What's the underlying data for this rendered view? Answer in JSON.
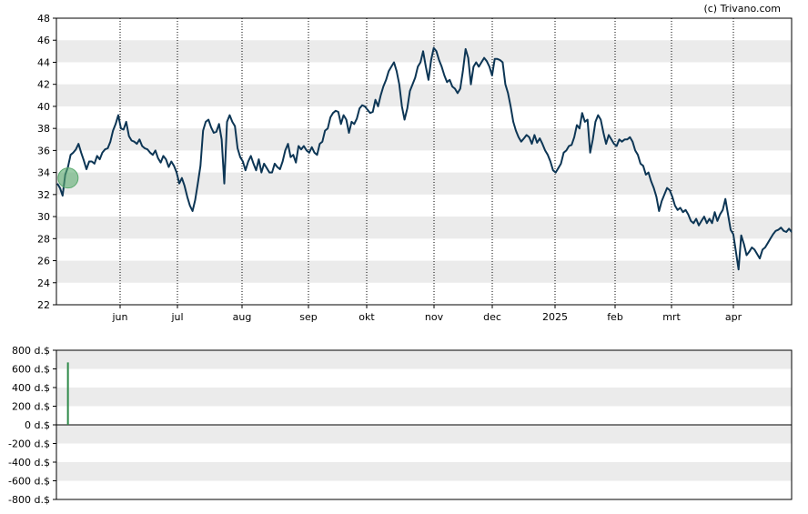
{
  "copyright": "(c) Trivano.com",
  "colors": {
    "line": "#0d3655",
    "band": "#ebebeb",
    "marker_fill": "#5aaa6e",
    "bar": "#2f8a4a",
    "axis": "#000000",
    "vgrid": "#000000"
  },
  "chart_data": [
    {
      "type": "line",
      "title": "",
      "xlabel": "",
      "ylabel": "",
      "ylim": [
        22,
        48
      ],
      "yticks": [
        "22",
        "24",
        "26",
        "28",
        "30",
        "32",
        "34",
        "36",
        "38",
        "40",
        "42",
        "44",
        "46",
        "48"
      ],
      "xticks": [
        "jun",
        "jul",
        "aug",
        "sep",
        "okt",
        "nov",
        "dec",
        "2025",
        "feb",
        "mrt",
        "apr"
      ],
      "vertical_gridlines": "dotted at each month",
      "horizontal_bands": "alternating grey/white",
      "start_marker": {
        "x_index": 2,
        "y": 33.5
      },
      "series": [
        {
          "values": [
            33.0,
            32.6,
            31.9,
            33.8,
            34.5,
            35.6,
            35.8,
            36.1,
            36.6,
            35.8,
            35.1,
            34.3,
            35.0,
            35.0,
            34.8,
            35.5,
            35.2,
            35.8,
            36.1,
            36.2,
            36.8,
            37.8,
            38.4,
            39.2,
            38.0,
            37.9,
            38.6,
            37.3,
            36.9,
            36.8,
            36.6,
            37.0,
            36.4,
            36.2,
            36.1,
            35.8,
            35.6,
            36.0,
            35.3,
            34.9,
            35.5,
            35.2,
            34.5,
            35.0,
            34.6,
            34.0,
            33.0,
            33.5,
            32.8,
            31.8,
            31.0,
            30.5,
            31.5,
            33.0,
            34.6,
            37.8,
            38.6,
            38.8,
            38.1,
            37.6,
            37.7,
            38.4,
            37.0,
            33.0,
            38.6,
            39.2,
            38.6,
            38.2,
            36.2,
            35.4,
            35.0,
            34.2,
            35.0,
            35.5,
            34.8,
            34.2,
            35.2,
            34.0,
            34.8,
            34.4,
            34.0,
            34.0,
            34.8,
            34.5,
            34.3,
            35.0,
            36.0,
            36.6,
            35.4,
            35.6,
            34.9,
            36.4,
            36.1,
            36.4,
            36.0,
            35.8,
            36.3,
            35.8,
            35.6,
            36.6,
            36.8,
            37.8,
            38.0,
            39.0,
            39.4,
            39.6,
            39.5,
            38.4,
            39.2,
            38.8,
            37.6,
            38.6,
            38.4,
            38.9,
            39.8,
            40.1,
            40.0,
            39.7,
            39.4,
            39.5,
            40.6,
            40.0,
            41.0,
            41.8,
            42.4,
            43.2,
            43.6,
            44.0,
            43.2,
            42.0,
            40.0,
            38.8,
            39.8,
            41.4,
            42.0,
            42.6,
            43.6,
            44.0,
            45.0,
            43.6,
            42.4,
            44.2,
            45.3,
            45.0,
            44.2,
            43.6,
            42.8,
            42.2,
            42.4,
            41.8,
            41.6,
            41.2,
            41.6,
            43.2,
            45.2,
            44.4,
            42.0,
            43.6,
            44.0,
            43.6,
            44.0,
            44.4,
            44.1,
            43.6,
            42.8,
            44.3,
            44.3,
            44.2,
            44.0,
            42.0,
            41.2,
            40.0,
            38.6,
            37.8,
            37.2,
            36.8,
            37.1,
            37.4,
            37.2,
            36.6,
            37.4,
            36.7,
            37.1,
            36.6,
            36.0,
            35.6,
            35.0,
            34.2,
            34.0,
            34.4,
            34.8,
            35.8,
            36.0,
            36.4,
            36.5,
            37.2,
            38.3,
            38.0,
            39.4,
            38.6,
            38.8,
            35.8,
            37.0,
            38.6,
            39.2,
            38.8,
            37.6,
            36.6,
            37.4,
            37.0,
            36.6,
            36.4,
            37.0,
            36.8,
            37.0,
            37.0,
            37.2,
            36.8,
            36.0,
            35.6,
            34.8,
            34.6,
            33.8,
            34.0,
            33.2,
            32.6,
            31.8,
            30.5,
            31.4,
            32.0,
            32.6,
            32.4,
            31.8,
            31.0,
            30.6,
            30.8,
            30.4,
            30.6,
            30.2,
            29.6,
            29.4,
            29.8,
            29.2,
            29.6,
            30.0,
            29.4,
            29.8,
            29.4,
            30.4,
            29.6,
            30.2,
            30.6,
            31.6,
            30.2,
            28.8,
            28.4,
            26.8,
            25.2,
            28.3,
            27.5,
            26.5,
            26.8,
            27.2,
            27.0,
            26.6,
            26.2,
            27.0,
            27.2,
            27.6,
            28.0,
            28.4,
            28.7,
            28.8,
            29.0,
            28.7,
            28.6,
            28.9,
            28.6
          ]
        }
      ]
    },
    {
      "type": "bar",
      "title": "",
      "xlabel": "",
      "ylabel": "",
      "ylim": [
        -800,
        800
      ],
      "yticks": [
        "-800 d.$",
        "-600 d.$",
        "-400 d.$",
        "-200 d.$",
        "0 d.$",
        "200 d.$",
        "400 d.$",
        "600 d.$",
        "800 d.$"
      ],
      "horizontal_bands": "alternating grey/white",
      "series": [
        {
          "bars": [
            {
              "x_index": 4,
              "value": 670
            }
          ]
        }
      ]
    }
  ]
}
